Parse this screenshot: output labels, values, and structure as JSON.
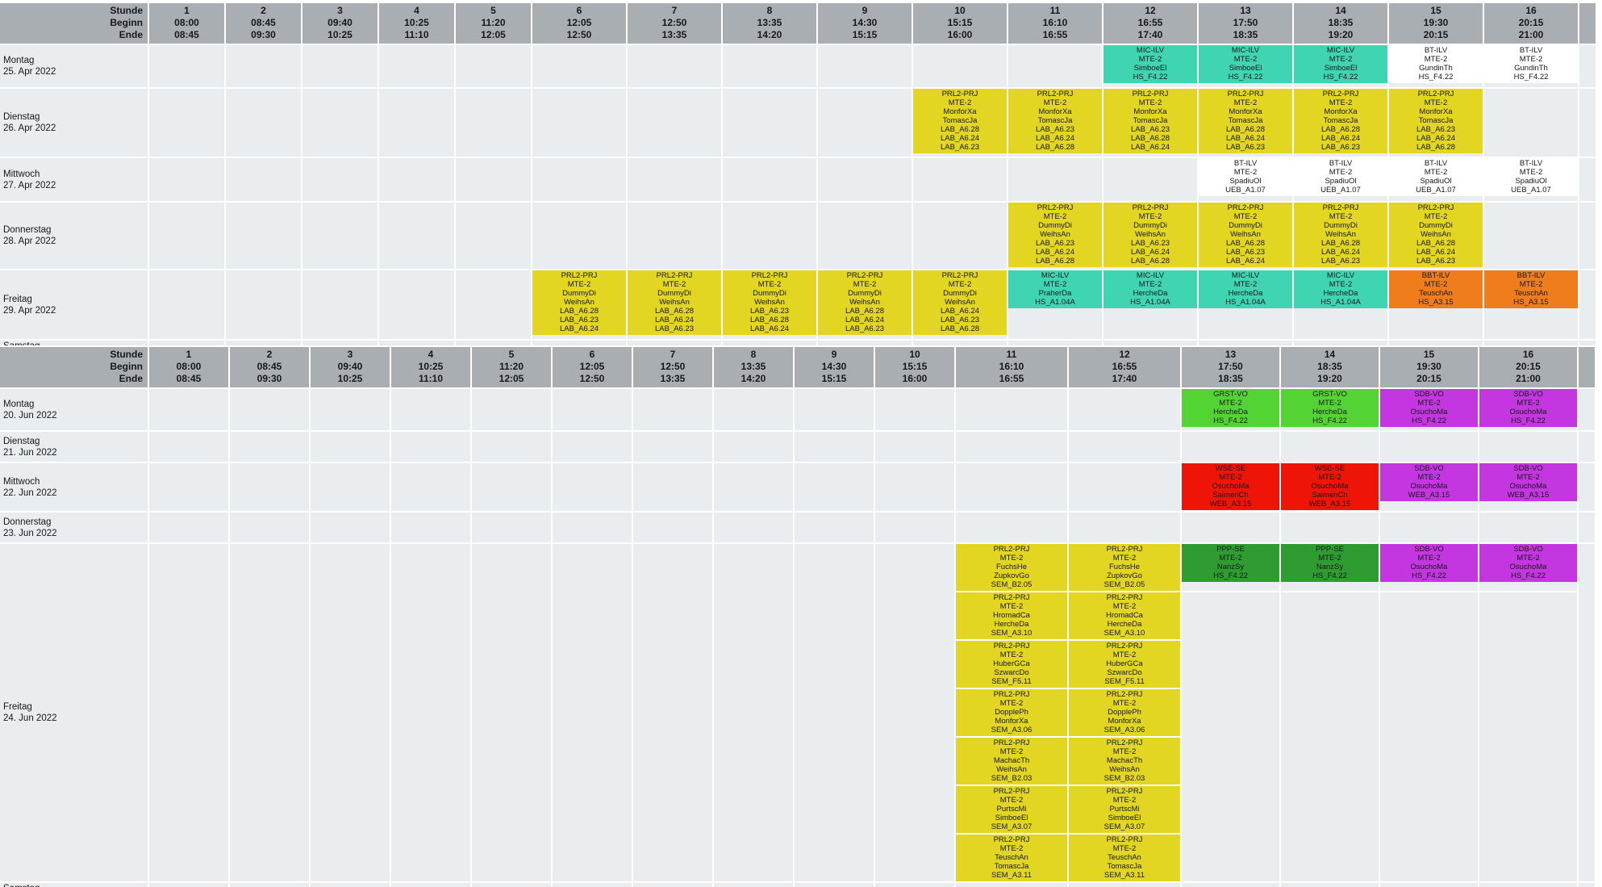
{
  "colors": {
    "yellow": "#e2d622",
    "cyan": "#40d5b2",
    "orange": "#f07d1c",
    "white": "#ffffff",
    "green": "#54d434",
    "darkgreen": "#2f9c31",
    "magenta": "#c436df",
    "red": "#ef1408",
    "header_bg": "#a9aeb3",
    "cell_bg": "#e9edf0",
    "grid_line": "#ffffff"
  },
  "header": {
    "row_labels": [
      "Stunde",
      "Beginn",
      "Ende"
    ],
    "periods": [
      {
        "num": "1",
        "beginn": "08:00",
        "ende": "08:45"
      },
      {
        "num": "2",
        "beginn": "08:45",
        "ende": "09:30"
      },
      {
        "num": "3",
        "beginn": "09:40",
        "ende": "10:25"
      },
      {
        "num": "4",
        "beginn": "10:25",
        "ende": "11:10"
      },
      {
        "num": "5",
        "beginn": "11:20",
        "ende": "12:05"
      },
      {
        "num": "6",
        "beginn": "12:05",
        "ende": "12:50"
      },
      {
        "num": "7",
        "beginn": "12:50",
        "ende": "13:35"
      },
      {
        "num": "8",
        "beginn": "13:35",
        "ende": "14:20"
      },
      {
        "num": "9",
        "beginn": "14:30",
        "ende": "15:15"
      },
      {
        "num": "10",
        "beginn": "15:15",
        "ende": "16:00"
      },
      {
        "num": "11",
        "beginn": "16:10",
        "ende": "16:55"
      },
      {
        "num": "12",
        "beginn": "16:55",
        "ende": "17:40"
      },
      {
        "num": "13",
        "beginn": "17:50",
        "ende": "18:35"
      },
      {
        "num": "14",
        "beginn": "18:35",
        "ende": "19:20"
      },
      {
        "num": "15",
        "beginn": "19:30",
        "ende": "20:15"
      },
      {
        "num": "16",
        "beginn": "20:15",
        "ende": "21:00"
      }
    ]
  },
  "weeks": [
    {
      "days": [
        {
          "label": "Montag",
          "date": "25. Apr 2022",
          "entries": [
            {
              "col": 12,
              "band": 1,
              "color": "cyan",
              "lines": [
                "MIC-ILV",
                "MTE-2",
                "SimboeEl",
                "HS_F4.22"
              ]
            },
            {
              "col": 13,
              "band": 1,
              "color": "cyan",
              "lines": [
                "MIC-ILV",
                "MTE-2",
                "SimboeEl",
                "HS_F4.22"
              ]
            },
            {
              "col": 14,
              "band": 1,
              "color": "cyan",
              "lines": [
                "MIC-ILV",
                "MTE-2",
                "SimboeEl",
                "HS_F4.22"
              ]
            },
            {
              "col": 15,
              "band": 1,
              "color": "white",
              "lines": [
                "BT-ILV",
                "MTE-2",
                "GundinTh",
                "HS_F4.22"
              ]
            },
            {
              "col": 16,
              "band": 1,
              "color": "white",
              "lines": [
                "BT-ILV",
                "MTE-2",
                "GundinTh",
                "HS_F4.22"
              ]
            }
          ]
        },
        {
          "label": "Dienstag",
          "date": "26. Apr 2022",
          "entries": [
            {
              "col": 10,
              "band": 1,
              "color": "yellow",
              "lines": [
                "PRL2-PRJ",
                "MTE-2",
                "MonforXa",
                "TomascJa",
                "LAB_A6.28",
                "LAB_A6.24",
                "LAB_A6.23"
              ]
            },
            {
              "col": 11,
              "band": 1,
              "color": "yellow",
              "lines": [
                "PRL2-PRJ",
                "MTE-2",
                "MonforXa",
                "TomascJa",
                "LAB_A6.23",
                "LAB_A6.24",
                "LAB_A6.28"
              ]
            },
            {
              "col": 12,
              "band": 1,
              "color": "yellow",
              "lines": [
                "PRL2-PRJ",
                "MTE-2",
                "MonforXa",
                "TomascJa",
                "LAB_A6.23",
                "LAB_A6.28",
                "LAB_A6.24"
              ]
            },
            {
              "col": 13,
              "band": 1,
              "color": "yellow",
              "lines": [
                "PRL2-PRJ",
                "MTE-2",
                "MonforXa",
                "TomascJa",
                "LAB_A6.28",
                "LAB_A6.24",
                "LAB_A6.23"
              ]
            },
            {
              "col": 14,
              "band": 1,
              "color": "yellow",
              "lines": [
                "PRL2-PRJ",
                "MTE-2",
                "MonforXa",
                "TomascJa",
                "LAB_A6.28",
                "LAB_A6.24",
                "LAB_A6.23"
              ]
            },
            {
              "col": 15,
              "band": 1,
              "color": "yellow",
              "lines": [
                "PRL2-PRJ",
                "MTE-2",
                "MonforXa",
                "TomascJa",
                "LAB_A6.23",
                "LAB_A6.24",
                "LAB_A6.28"
              ]
            }
          ]
        },
        {
          "label": "Mittwoch",
          "date": "27. Apr 2022",
          "entries": [
            {
              "col": 13,
              "band": 1,
              "color": "white",
              "lines": [
                "BT-ILV",
                "MTE-2",
                "SpadiuOl",
                "UEB_A1.07"
              ]
            },
            {
              "col": 14,
              "band": 1,
              "color": "white",
              "lines": [
                "BT-ILV",
                "MTE-2",
                "SpadiuOl",
                "UEB_A1.07"
              ]
            },
            {
              "col": 15,
              "band": 1,
              "color": "white",
              "lines": [
                "BT-ILV",
                "MTE-2",
                "SpadiuOl",
                "UEB_A1.07"
              ]
            },
            {
              "col": 16,
              "band": 1,
              "color": "white",
              "lines": [
                "BT-ILV",
                "MTE-2",
                "SpadiuOl",
                "UEB_A1.07"
              ]
            }
          ]
        },
        {
          "label": "Donnerstag",
          "date": "28. Apr 2022",
          "entries": [
            {
              "col": 11,
              "band": 1,
              "color": "yellow",
              "lines": [
                "PRL2-PRJ",
                "MTE-2",
                "DummyDi",
                "WeihsAn",
                "LAB_A6.23",
                "LAB_A6.24",
                "LAB_A6.28"
              ]
            },
            {
              "col": 12,
              "band": 1,
              "color": "yellow",
              "lines": [
                "PRL2-PRJ",
                "MTE-2",
                "DummyDi",
                "WeihsAn",
                "LAB_A6.23",
                "LAB_A6.24",
                "LAB_A6.28"
              ]
            },
            {
              "col": 13,
              "band": 1,
              "color": "yellow",
              "lines": [
                "PRL2-PRJ",
                "MTE-2",
                "DummyDi",
                "WeihsAn",
                "LAB_A6.28",
                "LAB_A6.23",
                "LAB_A6.24"
              ]
            },
            {
              "col": 14,
              "band": 1,
              "color": "yellow",
              "lines": [
                "PRL2-PRJ",
                "MTE-2",
                "DummyDi",
                "WeihsAn",
                "LAB_A6.28",
                "LAB_A6.24",
                "LAB_A6.23"
              ]
            },
            {
              "col": 15,
              "band": 1,
              "color": "yellow",
              "lines": [
                "PRL2-PRJ",
                "MTE-2",
                "DummyDi",
                "WeihsAn",
                "LAB_A6.28",
                "LAB_A6.24",
                "LAB_A6.23"
              ]
            }
          ]
        },
        {
          "label": "Freitag",
          "date": "29. Apr 2022",
          "entries": [
            {
              "col": 6,
              "band": 1,
              "color": "yellow",
              "lines": [
                "PRL2-PRJ",
                "MTE-2",
                "DummyDi",
                "WeihsAn",
                "LAB_A6.28",
                "LAB_A6.23",
                "LAB_A6.24"
              ]
            },
            {
              "col": 7,
              "band": 1,
              "color": "yellow",
              "lines": [
                "PRL2-PRJ",
                "MTE-2",
                "DummyDi",
                "WeihsAn",
                "LAB_A6.28",
                "LAB_A6.24",
                "LAB_A6.23"
              ]
            },
            {
              "col": 8,
              "band": 1,
              "color": "yellow",
              "lines": [
                "PRL2-PRJ",
                "MTE-2",
                "DummyDi",
                "WeihsAn",
                "LAB_A6.23",
                "LAB_A6.28",
                "LAB_A6.24"
              ]
            },
            {
              "col": 9,
              "band": 1,
              "color": "yellow",
              "lines": [
                "PRL2-PRJ",
                "MTE-2",
                "DummyDi",
                "WeihsAn",
                "LAB_A6.28",
                "LAB_A6.24",
                "LAB_A6.23"
              ]
            },
            {
              "col": 10,
              "band": 1,
              "color": "yellow",
              "lines": [
                "PRL2-PRJ",
                "MTE-2",
                "DummyDi",
                "WeihsAn",
                "LAB_A6.24",
                "LAB_A6.23",
                "LAB_A6.28"
              ]
            },
            {
              "col": 11,
              "band": 1,
              "color": "cyan",
              "lines": [
                "MIC-ILV",
                "MTE-2",
                "PraherDa",
                "HS_A1.04A"
              ]
            },
            {
              "col": 12,
              "band": 1,
              "color": "cyan",
              "lines": [
                "MIC-ILV",
                "MTE-2",
                "HercheDa",
                "HS_A1.04A"
              ]
            },
            {
              "col": 13,
              "band": 1,
              "color": "cyan",
              "lines": [
                "MIC-ILV",
                "MTE-2",
                "HercheDa",
                "HS_A1.04A"
              ]
            },
            {
              "col": 14,
              "band": 1,
              "color": "cyan",
              "lines": [
                "MIC-ILV",
                "MTE-2",
                "HercheDa",
                "HS_A1.04A"
              ]
            },
            {
              "col": 15,
              "band": 1,
              "color": "orange",
              "lines": [
                "BBT-ILV",
                "MTE-2",
                "TeuschAn",
                "HS_A3.15"
              ]
            },
            {
              "col": 16,
              "band": 1,
              "color": "orange",
              "lines": [
                "BBT-ILV",
                "MTE-2",
                "TeuschAn",
                "HS_A3.15"
              ]
            }
          ]
        },
        {
          "label": "Samstag",
          "date": "",
          "cut": true,
          "entries": []
        }
      ]
    },
    {
      "days": [
        {
          "label": "Montag",
          "date": "20. Jun 2022",
          "entries": [
            {
              "col": 13,
              "band": 1,
              "color": "green",
              "lines": [
                "GRST-VO",
                "MTE-2",
                "HercheDa",
                "HS_F4.22"
              ]
            },
            {
              "col": 14,
              "band": 1,
              "color": "green",
              "lines": [
                "GRST-VO",
                "MTE-2",
                "HercheDa",
                "HS_F4.22"
              ]
            },
            {
              "col": 15,
              "band": 1,
              "color": "magenta",
              "lines": [
                "SDB-VO",
                "MTE-2",
                "OsuchoMa",
                "HS_F4.22"
              ]
            },
            {
              "col": 16,
              "band": 1,
              "color": "magenta",
              "lines": [
                "SDB-VO",
                "MTE-2",
                "OsuchoMa",
                "HS_F4.22"
              ]
            }
          ]
        },
        {
          "label": "Dienstag",
          "date": "21. Jun 2022",
          "entries": []
        },
        {
          "label": "Mittwoch",
          "date": "22. Jun 2022",
          "entries": [
            {
              "col": 13,
              "band": 1,
              "color": "red",
              "lines": [
                "WSE-SE",
                "MTE-2",
                "OsuchoMa",
                "SaimenCh",
                "WEB_A3.15"
              ]
            },
            {
              "col": 14,
              "band": 1,
              "color": "red",
              "lines": [
                "WSE-SE",
                "MTE-2",
                "OsuchoMa",
                "SaimenCh",
                "WEB_A3.15"
              ]
            },
            {
              "col": 15,
              "band": 1,
              "color": "magenta",
              "lines": [
                "SDB-VO",
                "MTE-2",
                "OsuchoMa",
                "WEB_A3.15"
              ]
            },
            {
              "col": 16,
              "band": 1,
              "color": "magenta",
              "lines": [
                "SDB-VO",
                "MTE-2",
                "OsuchoMa",
                "WEB_A3.15"
              ]
            }
          ]
        },
        {
          "label": "Donnerstag",
          "date": "23. Jun 2022",
          "entries": []
        },
        {
          "label": "Freitag",
          "date": "24. Jun 2022",
          "entries": [
            {
              "col": 11,
              "band": 1,
              "color": "yellow",
              "lines": [
                "PRL2-PRJ",
                "MTE-2",
                "FuchsHe",
                "ZupkovGo",
                "SEM_B2.05"
              ]
            },
            {
              "col": 12,
              "band": 1,
              "color": "yellow",
              "lines": [
                "PRL2-PRJ",
                "MTE-2",
                "FuchsHe",
                "ZupkovGo",
                "SEM_B2.05"
              ]
            },
            {
              "col": 13,
              "band": 1,
              "color": "darkgreen",
              "lines": [
                "PPP-SE",
                "MTE-2",
                "NanzSy",
                "HS_F4.22"
              ]
            },
            {
              "col": 14,
              "band": 1,
              "color": "darkgreen",
              "lines": [
                "PPP-SE",
                "MTE-2",
                "NanzSy",
                "HS_F4.22"
              ]
            },
            {
              "col": 15,
              "band": 1,
              "color": "magenta",
              "lines": [
                "SDB-VO",
                "MTE-2",
                "OsuchoMa",
                "HS_F4.22"
              ]
            },
            {
              "col": 16,
              "band": 1,
              "color": "magenta",
              "lines": [
                "SDB-VO",
                "MTE-2",
                "OsuchoMa",
                "HS_F4.22"
              ]
            },
            {
              "col": 11,
              "band": 2,
              "color": "yellow",
              "lines": [
                "PRL2-PRJ",
                "MTE-2",
                "HromadCa",
                "HercheDa",
                "SEM_A3.10"
              ]
            },
            {
              "col": 12,
              "band": 2,
              "color": "yellow",
              "lines": [
                "PRL2-PRJ",
                "MTE-2",
                "HromadCa",
                "HercheDa",
                "SEM_A3.10"
              ]
            },
            {
              "col": 11,
              "band": 3,
              "color": "yellow",
              "lines": [
                "PRL2-PRJ",
                "MTE-2",
                "HuberGCa",
                "SzwarcDo",
                "SEM_F5.11"
              ]
            },
            {
              "col": 12,
              "band": 3,
              "color": "yellow",
              "lines": [
                "PRL2-PRJ",
                "MTE-2",
                "HuberGCa",
                "SzwarcDo",
                "SEM_F5.11"
              ]
            },
            {
              "col": 11,
              "band": 4,
              "color": "yellow",
              "lines": [
                "PRL2-PRJ",
                "MTE-2",
                "DopplePh",
                "MonforXa",
                "SEM_A3.06"
              ]
            },
            {
              "col": 12,
              "band": 4,
              "color": "yellow",
              "lines": [
                "PRL2-PRJ",
                "MTE-2",
                "DopplePh",
                "MonforXa",
                "SEM_A3.06"
              ]
            },
            {
              "col": 11,
              "band": 5,
              "color": "yellow",
              "lines": [
                "PRL2-PRJ",
                "MTE-2",
                "MachacTh",
                "WeihsAn",
                "SEM_B2.03"
              ]
            },
            {
              "col": 12,
              "band": 5,
              "color": "yellow",
              "lines": [
                "PRL2-PRJ",
                "MTE-2",
                "MachacTh",
                "WeihsAn",
                "SEM_B2.03"
              ]
            },
            {
              "col": 11,
              "band": 6,
              "color": "yellow",
              "lines": [
                "PRL2-PRJ",
                "MTE-2",
                "PurtscMi",
                "SimboeEl",
                "SEM_A3.07"
              ]
            },
            {
              "col": 12,
              "band": 6,
              "color": "yellow",
              "lines": [
                "PRL2-PRJ",
                "MTE-2",
                "PurtscMi",
                "SimboeEl",
                "SEM_A3.07"
              ]
            },
            {
              "col": 11,
              "band": 7,
              "color": "yellow",
              "lines": [
                "PRL2-PRJ",
                "MTE-2",
                "TeuschAn",
                "TomascJa",
                "SEM_A3.11"
              ]
            },
            {
              "col": 12,
              "band": 7,
              "color": "yellow",
              "lines": [
                "PRL2-PRJ",
                "MTE-2",
                "TeuschAn",
                "TomascJa",
                "SEM_A3.11"
              ]
            }
          ]
        },
        {
          "label": "Samstag",
          "date": "",
          "cut": true,
          "entries": []
        }
      ]
    }
  ]
}
